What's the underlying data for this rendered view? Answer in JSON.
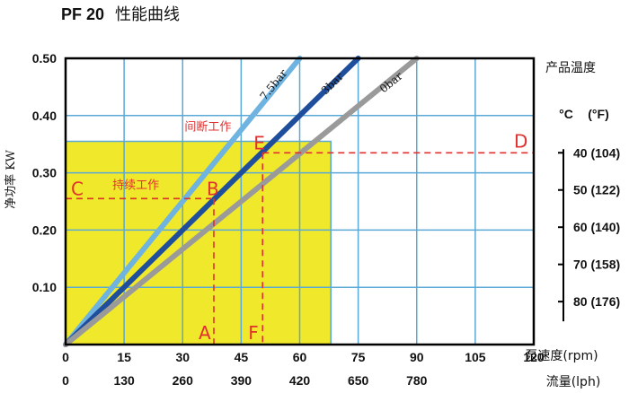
{
  "title": {
    "model": "PF 20",
    "suffix": "性能曲线"
  },
  "colors": {
    "plot_bg": "#ffffff",
    "grid": "#5aa9d6",
    "region": "#f0e82a",
    "line_7_5bar": "#6fb3e0",
    "line_3bar": "#1f4e9c",
    "line_0bar": "#9a9a9a",
    "dashed": "#e03030"
  },
  "chart_data": {
    "type": "line",
    "xlabel": "泵速度(rpm)",
    "x2label": "流量(lph)",
    "ylabel": "净功率 KW",
    "xlim": [
      0,
      120
    ],
    "ylim": [
      0,
      0.5
    ],
    "x_ticks": [
      "0",
      "15",
      "30",
      "45",
      "60",
      "75",
      "90",
      "105",
      "120"
    ],
    "x2_ticks": [
      "0",
      "130",
      "260",
      "390",
      "420",
      "650",
      "780",
      "",
      ""
    ],
    "y_ticks": [
      "0.10",
      "0.20",
      "0.30",
      "0.40",
      "0.50"
    ],
    "y_tick_values": [
      0.1,
      0.2,
      0.3,
      0.4,
      0.5
    ],
    "series": [
      {
        "name": "7.5bar",
        "x": [
          0,
          60
        ],
        "y": [
          0,
          0.5
        ]
      },
      {
        "name": "3bar",
        "x": [
          0,
          75
        ],
        "y": [
          0,
          0.5
        ]
      },
      {
        "name": "0bar",
        "x": [
          0,
          90
        ],
        "y": [
          0,
          0.5
        ]
      }
    ],
    "regions": [
      {
        "label": "间断工作",
        "x": [
          0,
          68
        ],
        "y": [
          0,
          0.355
        ]
      },
      {
        "label": "持续工作",
        "x": [
          0,
          38
        ],
        "y": [
          0,
          0.255
        ]
      }
    ],
    "points": [
      {
        "label": "A",
        "x": 38,
        "y": 0
      },
      {
        "label": "B",
        "x": 38,
        "y": 0.255
      },
      {
        "label": "C",
        "x": 0,
        "y": 0.255
      },
      {
        "label": "D",
        "x": 120,
        "y": 0.335
      },
      {
        "label": "E",
        "x": 50.5,
        "y": 0.335
      },
      {
        "label": "F",
        "x": 50.5,
        "y": 0
      }
    ],
    "temperature_scale": {
      "title": "产品温度",
      "header_c": "°C",
      "header_f": "(°F)",
      "ticks": [
        {
          "label": "40 (104)",
          "kw": 0.335
        },
        {
          "label": "50 (122)",
          "kw": 0.27
        },
        {
          "label": "60 (140)",
          "kw": 0.205
        },
        {
          "label": "70 (158)",
          "kw": 0.14
        },
        {
          "label": "80 (176)",
          "kw": 0.075
        }
      ]
    }
  }
}
